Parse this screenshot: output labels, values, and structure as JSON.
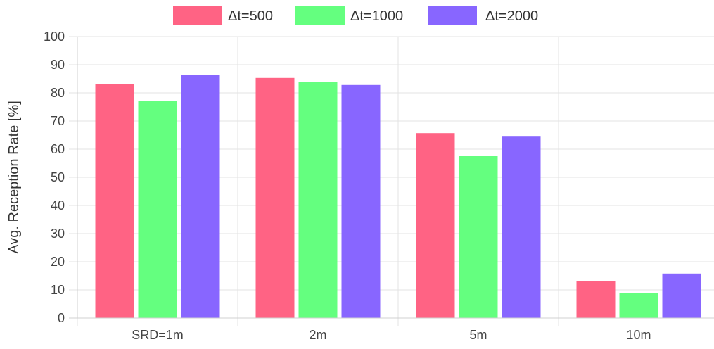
{
  "chart_data": {
    "type": "bar",
    "title": "",
    "xlabel": "",
    "ylabel": "Avg. Reception Rate [%]",
    "categories": [
      "SRD=1m",
      "2m",
      "5m",
      "10m"
    ],
    "series": [
      {
        "name": "Δt=500",
        "color": "#ff6384",
        "values": [
          83,
          85.3,
          65.7,
          13.2
        ]
      },
      {
        "name": "Δt=1000",
        "color": "#64ff7f",
        "values": [
          77.2,
          83.8,
          57.7,
          8.8
        ]
      },
      {
        "name": "Δt=2000",
        "color": "#8866ff",
        "values": [
          86.3,
          82.8,
          64.7,
          15.8
        ]
      }
    ],
    "ylim": [
      0,
      100
    ],
    "yticks": [
      "0",
      "10",
      "20",
      "30",
      "40",
      "50",
      "60",
      "70",
      "80",
      "90",
      "100"
    ],
    "grid": true,
    "legend_position": "top-center"
  }
}
